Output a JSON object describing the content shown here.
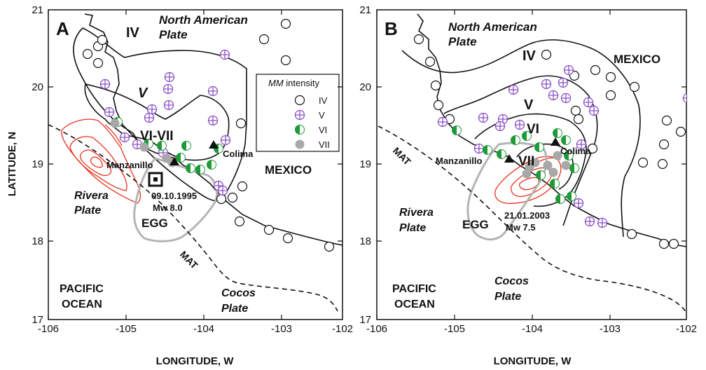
{
  "panels": [
    {
      "letter": "A",
      "x_ticks": [
        "-106",
        "-105",
        "-104",
        "-103",
        "-102"
      ],
      "y_ticks": [
        "21",
        "20",
        "19",
        "18",
        "17"
      ],
      "labels": {
        "na_plate_1": "North American",
        "na_plate_2": "Plate",
        "iv": "IV",
        "v": "V",
        "vi_vii": "VI-VII",
        "colima": "Colima",
        "manzanillo": "Manzanillo",
        "mexico": "MEXICO",
        "rivera_1": "Rivera",
        "rivera_2": "Plate",
        "event_date": "09.10.1995",
        "event_mag": "Mw 8.0",
        "egg": "EGG",
        "mat": "MAT",
        "pacific_1": "PACIFIC",
        "pacific_2": "OCEAN",
        "cocos_1": "Cocos",
        "cocos_2": "Plate"
      }
    },
    {
      "letter": "B",
      "x_ticks": [
        "-106",
        "-105",
        "-104",
        "-103",
        "-102"
      ],
      "y_ticks": [
        "21",
        "20",
        "19",
        "18",
        "17"
      ],
      "labels": {
        "na_plate_1": "North American",
        "na_plate_2": "Plate",
        "iv": "IV",
        "v": "V",
        "vi": "VI",
        "vii": "VII",
        "colima": "Colima",
        "manzanillo": "Manzanillo",
        "mexico": "MEXICO",
        "rivera_1": "Rivera",
        "rivera_2": "Plate",
        "event_date": "21.01.2003",
        "event_mag": "Mw 7.5",
        "egg": "EGG",
        "mat": "MAT",
        "pacific_1": "PACIFIC",
        "pacific_2": "OCEAN",
        "cocos_1": "Cocos",
        "cocos_2": "Plate"
      }
    }
  ],
  "axes": {
    "ylabel": "LATITUDE, N",
    "xlabel": "LONGITUDE, W",
    "x_range": [
      -106,
      -102
    ],
    "y_range": [
      17,
      21
    ]
  },
  "legend": {
    "title_ital": "MM",
    "title_rest": " intensity",
    "items": [
      "IV",
      "V",
      "VI",
      "VII"
    ]
  },
  "colors": {
    "contour_line": "#000000",
    "aftershock_contour": "#e8301c",
    "egg_outline": "#b4b4b4",
    "intensity_v": "#8a4fc2",
    "intensity_vi": "#1f9a38",
    "intensity_vii": "#a8a8a8"
  }
}
